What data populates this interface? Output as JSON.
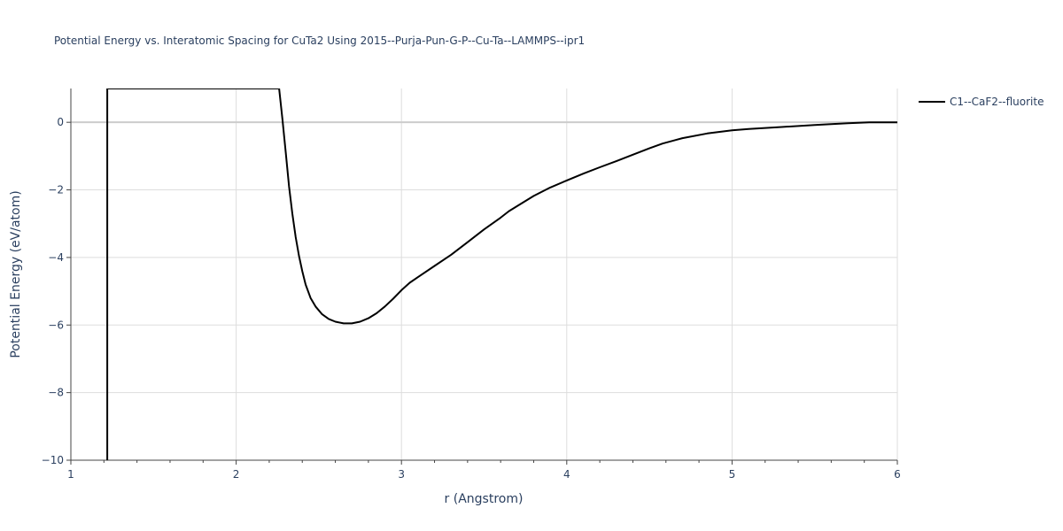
{
  "chart_data": {
    "type": "line",
    "title": "Potential Energy vs. Interatomic Spacing for CuTa2 Using 2015--Purja-Pun-G-P--Cu-Ta--LAMMPS--ipr1",
    "xlabel": "r (Angstrom)",
    "ylabel": "Potential Energy (eV/atom)",
    "xlim": [
      1,
      6
    ],
    "ylim": [
      -10,
      1
    ],
    "x_ticks": [
      1,
      2,
      3,
      4,
      5,
      6
    ],
    "x_tick_labels": [
      "1",
      "2",
      "3",
      "4",
      "5",
      "6"
    ],
    "y_ticks": [
      0,
      -2,
      -4,
      -6,
      -8,
      -10
    ],
    "y_tick_labels": [
      "0",
      "−2",
      "−4",
      "−6",
      "−8",
      "−10"
    ],
    "grid": true,
    "legend_position": "top-right",
    "colors": {
      "line": "#000000",
      "grid": "#dddddd",
      "zeroline": "#cccccc",
      "text": "#2a3f5f"
    },
    "series": [
      {
        "name": "C1--CaF2--fluorite",
        "x": [
          1.22,
          1.22,
          2.26,
          2.28,
          2.3,
          2.32,
          2.34,
          2.36,
          2.38,
          2.4,
          2.42,
          2.45,
          2.48,
          2.52,
          2.56,
          2.6,
          2.65,
          2.7,
          2.75,
          2.8,
          2.85,
          2.9,
          2.95,
          3.0,
          3.05,
          3.1,
          3.2,
          3.3,
          3.4,
          3.5,
          3.6,
          3.65,
          3.7,
          3.8,
          3.9,
          4.0,
          4.1,
          4.2,
          4.3,
          4.4,
          4.5,
          4.58,
          4.7,
          4.85,
          5.0,
          5.1,
          5.3,
          5.5,
          5.7,
          5.83,
          6.0
        ],
        "y": [
          -10,
          1.0,
          1.0,
          0.1,
          -0.9,
          -1.9,
          -2.7,
          -3.4,
          -3.95,
          -4.4,
          -4.8,
          -5.2,
          -5.45,
          -5.68,
          -5.82,
          -5.9,
          -5.95,
          -5.95,
          -5.9,
          -5.8,
          -5.65,
          -5.45,
          -5.22,
          -4.97,
          -4.75,
          -4.58,
          -4.25,
          -3.92,
          -3.55,
          -3.17,
          -2.82,
          -2.63,
          -2.48,
          -2.18,
          -1.93,
          -1.72,
          -1.52,
          -1.33,
          -1.15,
          -0.96,
          -0.77,
          -0.63,
          -0.47,
          -0.33,
          -0.24,
          -0.2,
          -0.14,
          -0.08,
          -0.03,
          0.0,
          0.0
        ]
      }
    ]
  }
}
